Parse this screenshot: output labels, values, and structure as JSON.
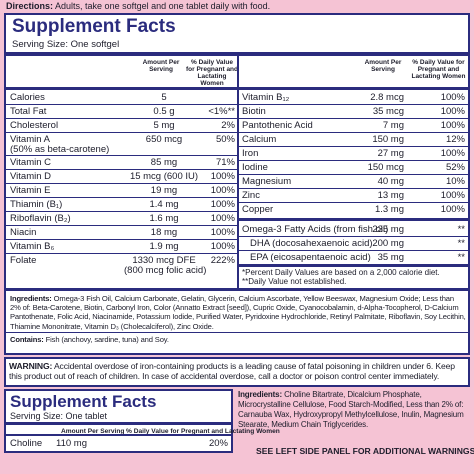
{
  "directions": {
    "label": "Directions:",
    "text": "Adults, take one softgel and one tablet daily with food."
  },
  "softgel": {
    "title": "Supplement Facts",
    "serving": "Serving Size: One softgel",
    "amount_header": "Amount Per Serving",
    "dv_header": "% Daily Value for Pregnant and Lactating Women",
    "left_rows": [
      {
        "name": "Calories",
        "amount": "5",
        "dv": ""
      },
      {
        "name": "Total Fat",
        "amount": "0.5 g",
        "dv": "<1%**"
      },
      {
        "name": "Cholesterol",
        "amount": "5 mg",
        "dv": "2%"
      },
      {
        "name": "Vitamin A",
        "note": "(50% as beta-carotene)",
        "amount": "650 mcg",
        "dv": "50%"
      },
      {
        "name": "Vitamin C",
        "amount": "85 mg",
        "dv": "71%"
      },
      {
        "name": "Vitamin D",
        "amount": "15 mcg (600 IU)",
        "dv": "100%"
      },
      {
        "name": "Vitamin E",
        "amount": "19 mg",
        "dv": "100%"
      },
      {
        "name": "Thiamin (B₁)",
        "amount": "1.4 mg",
        "dv": "100%"
      },
      {
        "name": "Riboflavin (B₂)",
        "amount": "1.6 mg",
        "dv": "100%"
      },
      {
        "name": "Niacin",
        "amount": "18 mg",
        "dv": "100%"
      },
      {
        "name": "Vitamin B₆",
        "amount": "1.9 mg",
        "dv": "100%"
      },
      {
        "name": "Folate",
        "amount": "1330 mcg DFE",
        "amount_note": "(800 mcg folic acid)",
        "dv": "222%"
      }
    ],
    "right_rows": [
      {
        "name": "Vitamin B₁₂",
        "amount": "2.8 mcg",
        "dv": "100%"
      },
      {
        "name": "Biotin",
        "amount": "35 mcg",
        "dv": "100%"
      },
      {
        "name": "Pantothenic Acid",
        "amount": "7 mg",
        "dv": "100%"
      },
      {
        "name": "Calcium",
        "amount": "150 mg",
        "dv": "12%"
      },
      {
        "name": "Iron",
        "amount": "27 mg",
        "dv": "100%"
      },
      {
        "name": "Iodine",
        "amount": "150 mcg",
        "dv": "52%"
      },
      {
        "name": "Magnesium",
        "amount": "40 mg",
        "dv": "10%"
      },
      {
        "name": "Zinc",
        "amount": "13 mg",
        "dv": "100%"
      },
      {
        "name": "Copper",
        "amount": "1.3 mg",
        "dv": "100%"
      }
    ],
    "fatty_acids": [
      {
        "name": "Omega-3 Fatty Acids (from fish oil)",
        "amount": "235 mg",
        "dv": "**"
      },
      {
        "name": "DHA (docosahexaenoic acid)",
        "amount": "200 mg",
        "dv": "**"
      },
      {
        "name": "EPA (eicosapentaenoic acid)",
        "amount": "35 mg",
        "dv": "**"
      }
    ],
    "footnotes": [
      "*Percent Daily Values are based on a 2,000 calorie diet.",
      "**Daily Value not established."
    ],
    "ingredients": {
      "label": "Ingredients:",
      "text": "Omega-3 Fish Oil, Calcium Carbonate, Gelatin, Glycerin, Calcium Ascorbate, Yellow Beeswax, Magnesium Oxide; Less than 2% of: Beta-Carotene, Biotin, Carbonyl Iron, Color (Annatto Extract [seed]), Cupric Oxide, Cyanocobalamin, d-Alpha-Tocopherol, D-Calcium Pantothenate, Folic Acid, Niacinamide, Potassium Iodide, Purified Water, Pyridoxine Hydrochloride, Retinyl Palmitate, Riboflavin, Soy Lecithin, Thiamine Mononitrate, Vitamin D₃ (Cholecalciferol), Zinc Oxide."
    },
    "contains": {
      "label": "Contains:",
      "text": "Fish (anchovy, sardine, tuna) and Soy."
    }
  },
  "warning": {
    "label": "WARNING:",
    "text": "Accidental overdose of iron-containing products is a leading cause of fatal poisoning in children under 6. Keep this product out of reach of children. In case of accidental overdose, call a doctor or poison control center immediately."
  },
  "tablet": {
    "title": "Supplement Facts",
    "serving": "Serving Size: One tablet",
    "amount_header": "Amount Per Serving",
    "dv_header": "% Daily Value for Pregnant and Lactating Women",
    "rows": [
      {
        "name": "Choline",
        "amount": "110 mg",
        "dv": "20%"
      }
    ]
  },
  "tablet_ingredients": {
    "label": "Ingredients:",
    "text": "Choline Bitartrate, Dicalcium Phosphate, Microcrystalline Cellulose, Food Starch-Modified, Less than 2% of: Carnauba Wax, Hydroxypropyl Methylcellulose, Inulin, Magnesium Stearate, Medium Chain Triglycerides."
  },
  "side_note": "SEE LEFT SIDE PANEL FOR ADDITIONAL WARNINGS"
}
